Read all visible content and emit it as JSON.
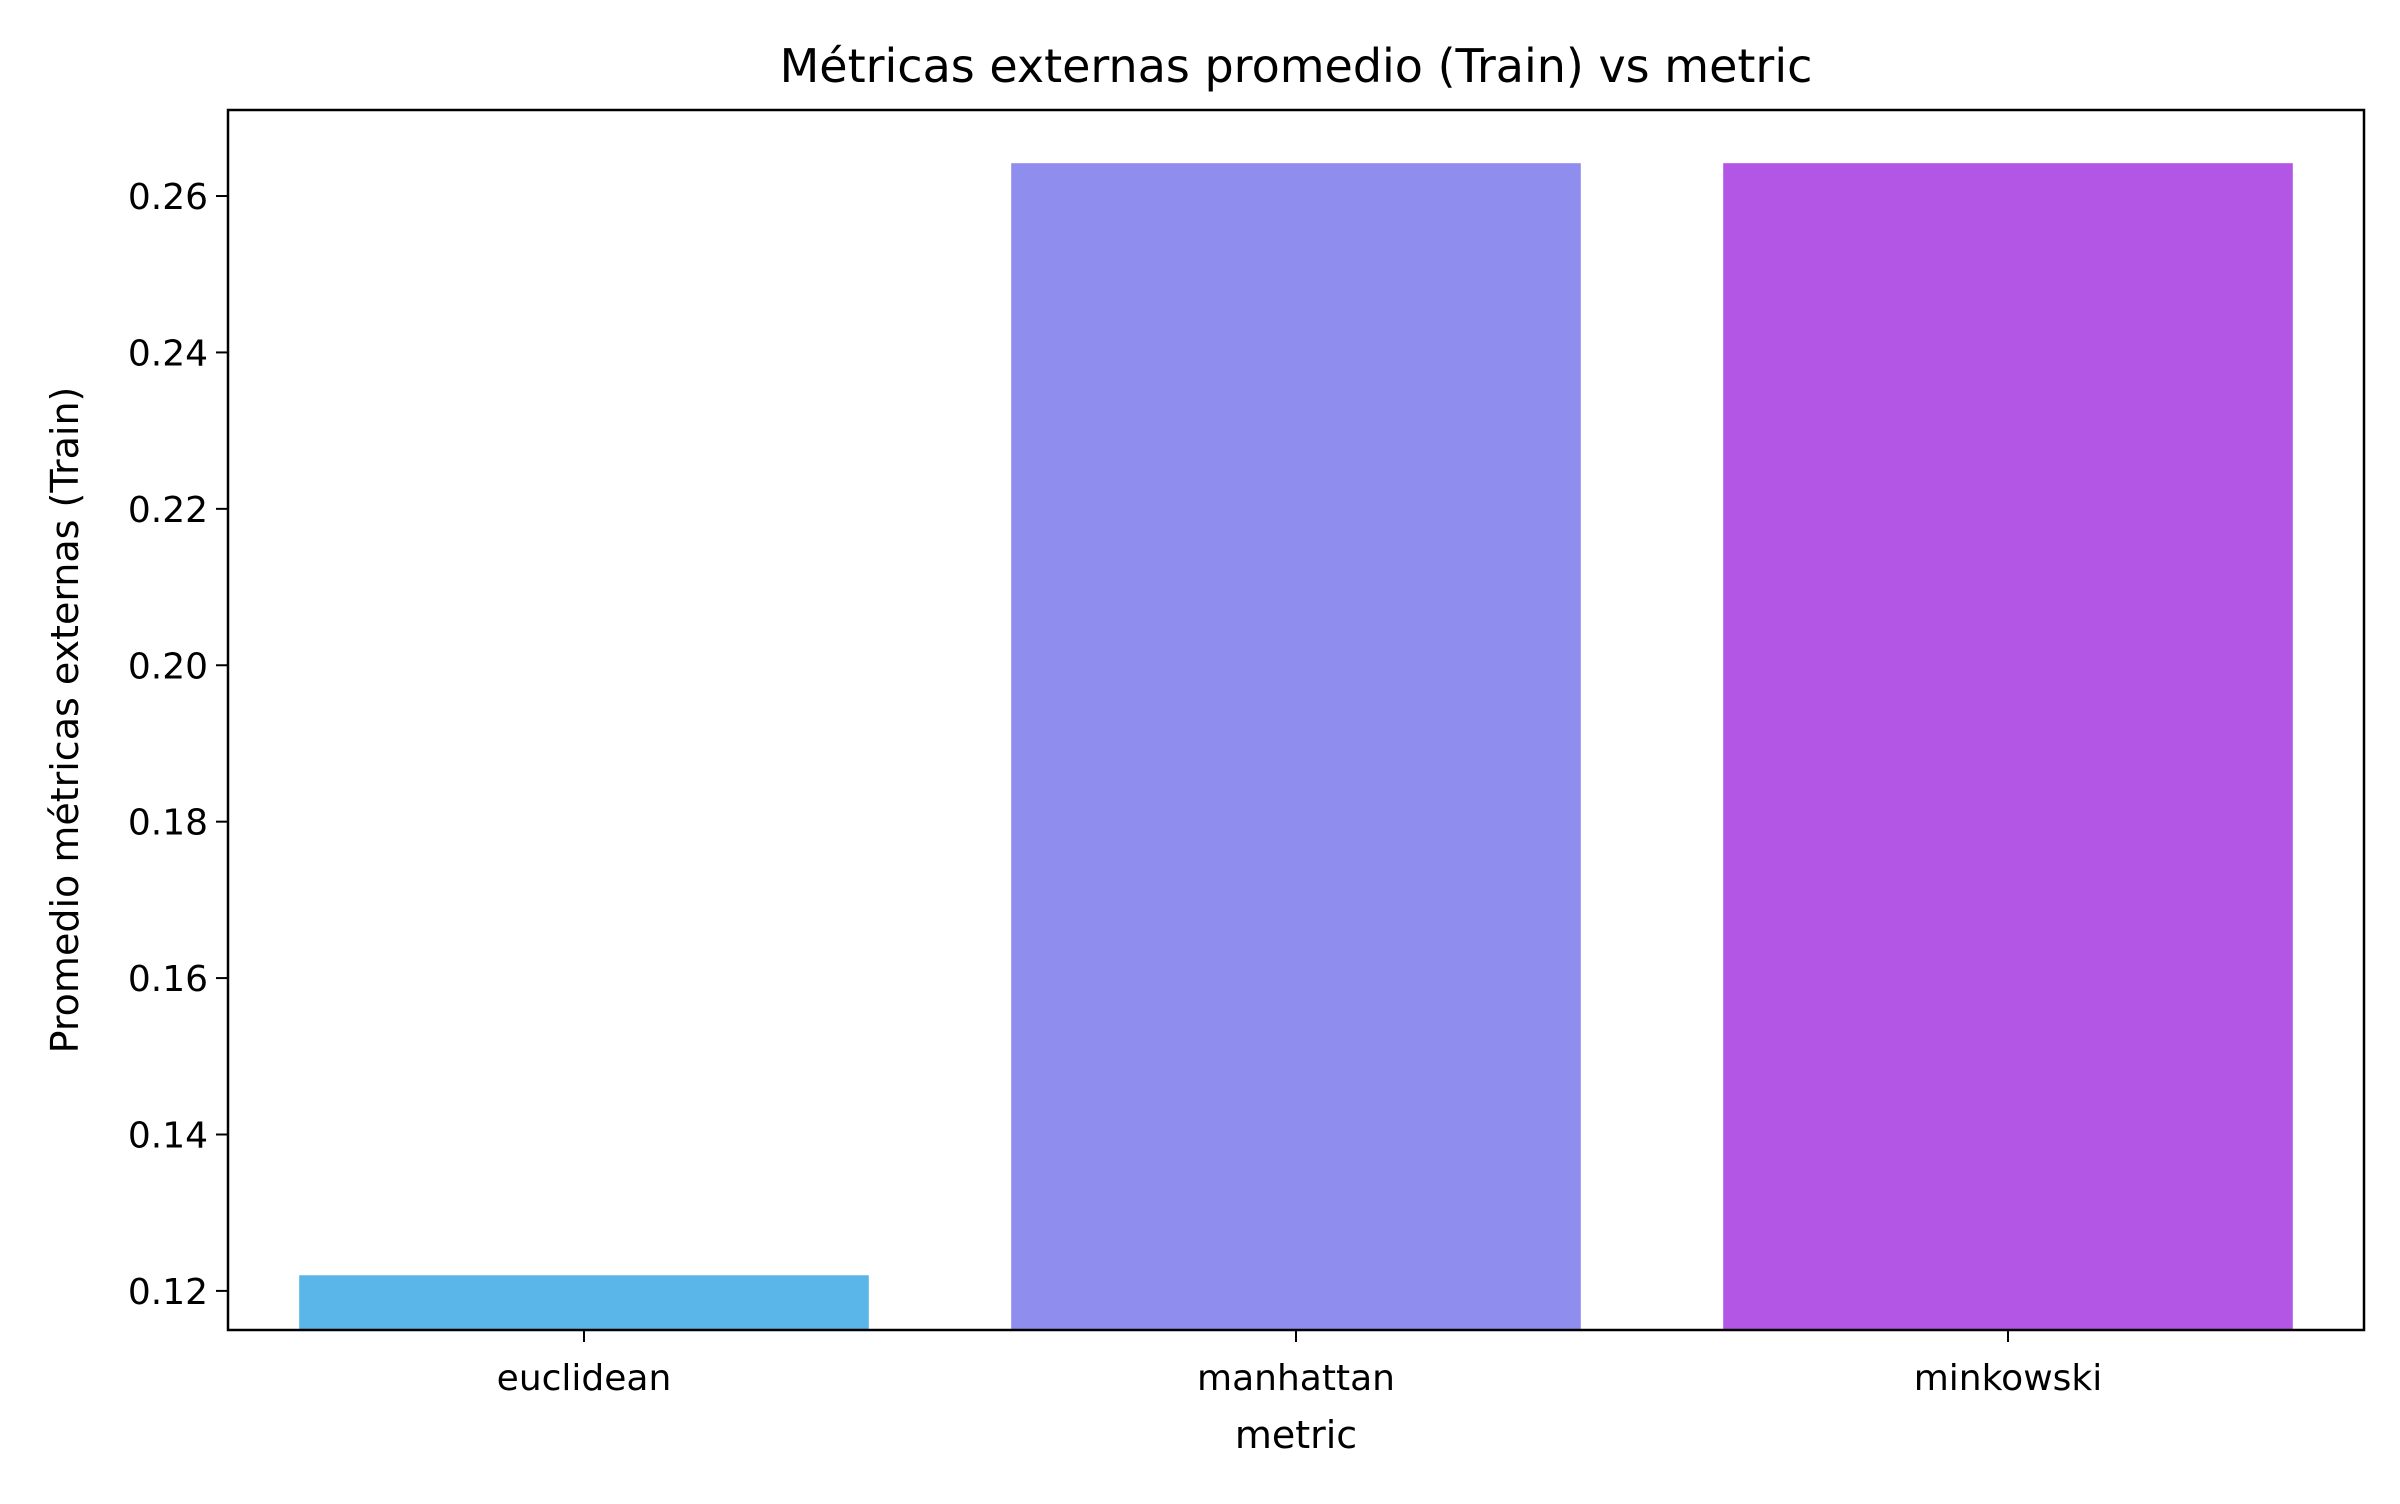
{
  "chart_data": {
    "type": "bar",
    "title": "Métricas externas promedio (Train) vs metric",
    "xlabel": "metric",
    "ylabel": "Promedio métricas externas (Train)",
    "categories": [
      "euclidean",
      "manhattan",
      "minkowski"
    ],
    "values": [
      0.122,
      0.2642,
      0.2642
    ],
    "colors": [
      "#5ab6e8",
      "#8f8ded",
      "#b456e5"
    ],
    "ylim": [
      0.115,
      0.271
    ],
    "yticks": [
      0.12,
      0.14,
      0.16,
      0.18,
      0.2,
      0.22,
      0.24,
      0.26
    ],
    "ytick_labels": [
      "0.12",
      "0.14",
      "0.16",
      "0.18",
      "0.20",
      "0.22",
      "0.24",
      "0.26"
    ],
    "grid": false,
    "legend": "none"
  }
}
